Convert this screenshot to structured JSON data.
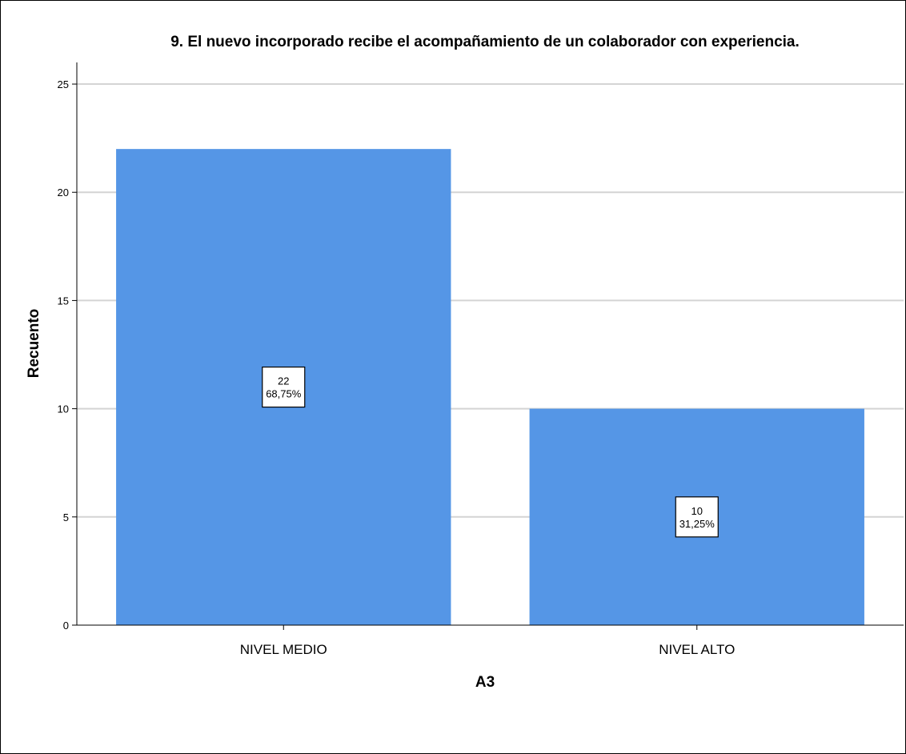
{
  "chart_data": {
    "type": "bar",
    "title": "9. El nuevo incorporado recibe el acompañamiento de un colaborador con experiencia.",
    "xlabel": "A3",
    "ylabel": "Recuento",
    "categories": [
      "NIVEL MEDIO",
      "NIVEL ALTO"
    ],
    "values": [
      22,
      10
    ],
    "data_labels": [
      {
        "count": "22",
        "percent": "68,75%"
      },
      {
        "count": "10",
        "percent": "31,25%"
      }
    ],
    "ylim": [
      0,
      26
    ],
    "yticks": [
      "0",
      "5",
      "10",
      "15",
      "20",
      "25"
    ],
    "grid": true,
    "bar_color": "#5596e6",
    "grid_color": "#d4d4d4"
  }
}
